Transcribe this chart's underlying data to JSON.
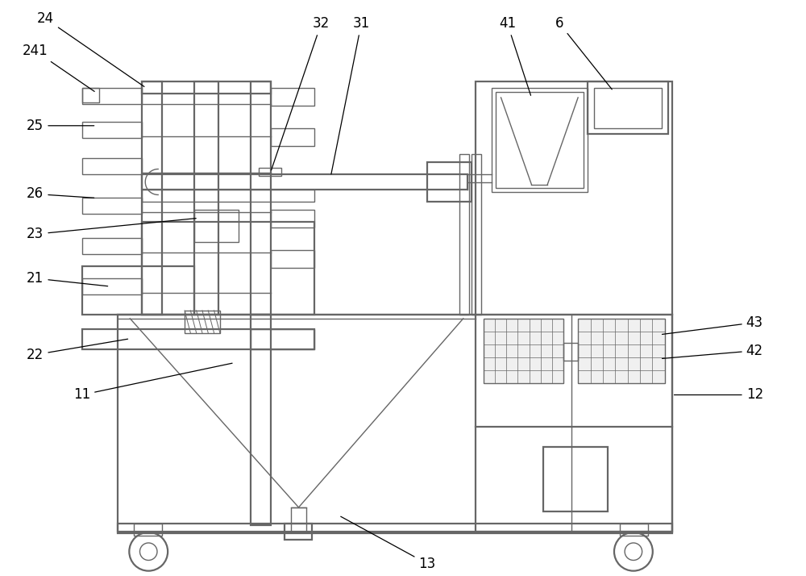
{
  "bg_color": "#ffffff",
  "lc": "#666666",
  "lw": 1.0,
  "lw2": 1.6
}
